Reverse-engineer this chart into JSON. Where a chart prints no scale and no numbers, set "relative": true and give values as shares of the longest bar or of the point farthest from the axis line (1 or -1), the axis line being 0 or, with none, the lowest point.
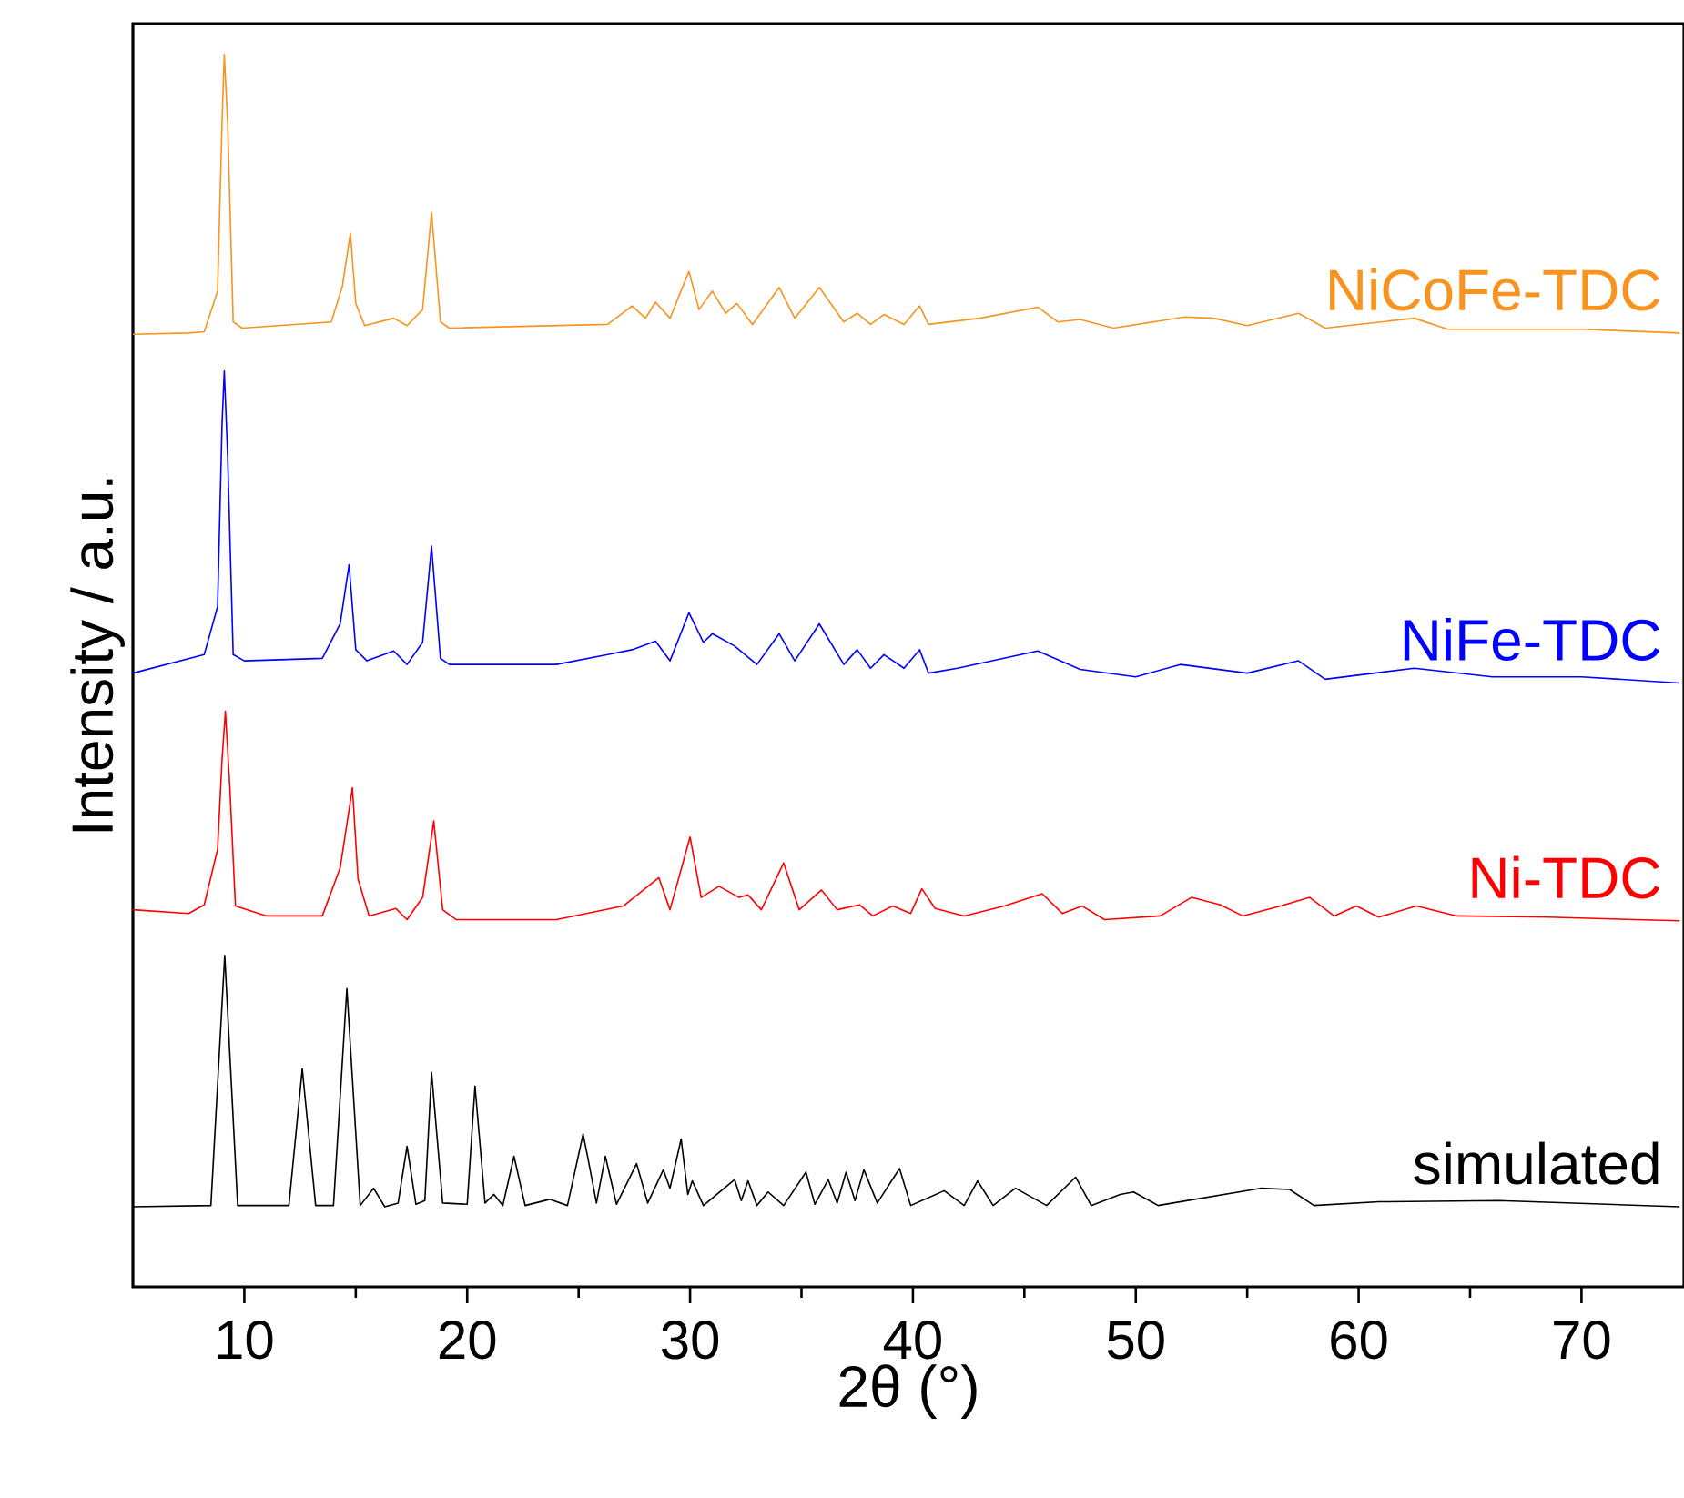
{
  "chart_data": {
    "type": "line",
    "relative": true,
    "xlabel": "2θ (°)",
    "ylabel": "Intensity / a.u.",
    "xlim": [
      5,
      74.6
    ],
    "xticks": [
      10,
      {
        "value": 15,
        "label": null
      },
      20,
      {
        "value": 25,
        "label": null
      },
      30,
      {
        "value": 35,
        "label": null
      },
      40,
      {
        "value": 45,
        "label": null
      },
      50,
      {
        "value": 55,
        "label": null
      },
      60,
      {
        "value": 65,
        "label": null
      },
      70
    ],
    "series": [
      {
        "name": "NiCoFe-TDC",
        "color": "#f7931e",
        "x": [
          5,
          7.5,
          8.2,
          8.8,
          9.0,
          9.1,
          9.25,
          9.5,
          9.9,
          13.9,
          14.4,
          14.76,
          15.0,
          15.4,
          16.7,
          17.3,
          18.0,
          18.4,
          18.8,
          19.2,
          26.3,
          27.4,
          28.0,
          28.45,
          29.1,
          29.95,
          30.4,
          31.0,
          31.6,
          32.1,
          32.8,
          34.0,
          34.7,
          35.8,
          36.9,
          37.5,
          38.1,
          38.7,
          39.6,
          40.3,
          40.7,
          43,
          45.6,
          46.5,
          47.5,
          49,
          52.2,
          53.5,
          55,
          57.3,
          58.5,
          62.5,
          64,
          70,
          74.4
        ],
        "values": [
          0.773,
          0.774,
          0.775,
          0.808,
          0.945,
          1.0,
          0.945,
          0.783,
          0.778,
          0.783,
          0.812,
          0.855,
          0.798,
          0.78,
          0.786,
          0.78,
          0.793,
          0.872,
          0.783,
          0.778,
          0.781,
          0.796,
          0.786,
          0.799,
          0.786,
          0.824,
          0.793,
          0.808,
          0.79,
          0.798,
          0.781,
          0.811,
          0.786,
          0.811,
          0.783,
          0.79,
          0.781,
          0.789,
          0.781,
          0.796,
          0.781,
          0.786,
          0.795,
          0.783,
          0.785,
          0.778,
          0.787,
          0.786,
          0.78,
          0.79,
          0.778,
          0.786,
          0.777,
          0.777,
          0.774
        ]
      },
      {
        "name": "NiFe-TDC",
        "color": "#0000ff",
        "x": [
          5,
          8.2,
          8.8,
          9.0,
          9.1,
          9.25,
          9.5,
          10,
          13.5,
          14.3,
          14.7,
          15.0,
          15.5,
          16.7,
          17.3,
          18.0,
          18.4,
          18.8,
          19.2,
          24,
          26.3,
          27.4,
          28.45,
          29.1,
          29.95,
          30.6,
          31.0,
          32.0,
          33.0,
          34.0,
          34.7,
          35.8,
          36.9,
          37.5,
          38.1,
          38.7,
          39.6,
          40.3,
          40.7,
          42,
          45.6,
          47.5,
          50,
          52,
          55,
          57.3,
          58.5,
          62.5,
          66,
          70,
          74.4
        ],
        "values": [
          0.498,
          0.513,
          0.552,
          0.7,
          0.743,
          0.675,
          0.513,
          0.508,
          0.51,
          0.538,
          0.586,
          0.517,
          0.508,
          0.516,
          0.505,
          0.523,
          0.601,
          0.51,
          0.505,
          0.505,
          0.513,
          0.517,
          0.524,
          0.508,
          0.547,
          0.523,
          0.53,
          0.52,
          0.505,
          0.53,
          0.508,
          0.538,
          0.505,
          0.517,
          0.502,
          0.513,
          0.502,
          0.517,
          0.498,
          0.502,
          0.516,
          0.501,
          0.495,
          0.505,
          0.498,
          0.508,
          0.493,
          0.502,
          0.495,
          0.495,
          0.49
        ]
      },
      {
        "name": "Ni-TDC",
        "color": "#ff0000",
        "x": [
          5,
          7.5,
          8.2,
          8.8,
          9.0,
          9.15,
          9.35,
          9.6,
          11,
          13.5,
          14.3,
          14.85,
          15.1,
          15.6,
          16.8,
          17.3,
          18.0,
          18.5,
          18.9,
          19.5,
          24,
          27,
          28.6,
          29.1,
          30.0,
          30.5,
          31.3,
          32.2,
          32.6,
          33.2,
          34.2,
          34.9,
          35.9,
          36.6,
          37.6,
          38.2,
          39.1,
          39.9,
          40.4,
          41,
          42.3,
          44.1,
          45.8,
          46.7,
          47.6,
          48.6,
          51.1,
          52.5,
          53.8,
          54.8,
          56.5,
          57.8,
          58.9,
          59.9,
          60.9,
          62.6,
          64.4,
          68.5,
          74.4
        ],
        "values": [
          0.306,
          0.303,
          0.31,
          0.355,
          0.428,
          0.467,
          0.405,
          0.309,
          0.301,
          0.301,
          0.34,
          0.405,
          0.331,
          0.301,
          0.307,
          0.298,
          0.316,
          0.378,
          0.306,
          0.298,
          0.298,
          0.309,
          0.332,
          0.306,
          0.365,
          0.316,
          0.325,
          0.316,
          0.318,
          0.306,
          0.344,
          0.306,
          0.322,
          0.306,
          0.31,
          0.301,
          0.309,
          0.303,
          0.323,
          0.307,
          0.301,
          0.309,
          0.319,
          0.303,
          0.309,
          0.298,
          0.301,
          0.316,
          0.31,
          0.301,
          0.309,
          0.316,
          0.301,
          0.309,
          0.3,
          0.309,
          0.301,
          0.3,
          0.297
        ]
      },
      {
        "name": "simulated",
        "color": "#000000",
        "x": [
          5,
          8.5,
          9.12,
          9.7,
          12.0,
          12.6,
          13.2,
          14.0,
          14.6,
          15.2,
          15.8,
          16.3,
          16.9,
          17.3,
          17.7,
          18.1,
          18.4,
          18.9,
          20.0,
          20.35,
          20.8,
          21.2,
          21.6,
          22.1,
          22.6,
          23.7,
          24.5,
          25.2,
          25.4,
          25.8,
          26.2,
          26.7,
          27.6,
          28.1,
          28.8,
          29.1,
          29.6,
          29.9,
          30.1,
          30.6,
          32.0,
          32.3,
          32.6,
          33.0,
          33.5,
          34.2,
          35.2,
          35.6,
          36.2,
          36.6,
          37.0,
          37.4,
          37.8,
          38.4,
          39.4,
          39.9,
          41.4,
          42.3,
          42.9,
          43.6,
          44.6,
          46.0,
          47.3,
          48.0,
          49.3,
          49.9,
          51,
          55.6,
          56.9,
          58,
          60.9,
          66.3,
          74.4
        ],
        "values": [
          0.065,
          0.066,
          0.269,
          0.066,
          0.066,
          0.177,
          0.066,
          0.066,
          0.242,
          0.066,
          0.08,
          0.065,
          0.068,
          0.114,
          0.067,
          0.07,
          0.174,
          0.068,
          0.067,
          0.163,
          0.068,
          0.075,
          0.066,
          0.106,
          0.066,
          0.071,
          0.066,
          0.124,
          0.106,
          0.068,
          0.106,
          0.067,
          0.1,
          0.068,
          0.095,
          0.08,
          0.12,
          0.075,
          0.086,
          0.066,
          0.087,
          0.07,
          0.086,
          0.066,
          0.077,
          0.066,
          0.093,
          0.067,
          0.087,
          0.068,
          0.093,
          0.07,
          0.095,
          0.068,
          0.096,
          0.066,
          0.078,
          0.066,
          0.086,
          0.066,
          0.08,
          0.066,
          0.089,
          0.066,
          0.075,
          0.077,
          0.066,
          0.08,
          0.079,
          0.066,
          0.069,
          0.07,
          0.065
        ]
      }
    ]
  }
}
